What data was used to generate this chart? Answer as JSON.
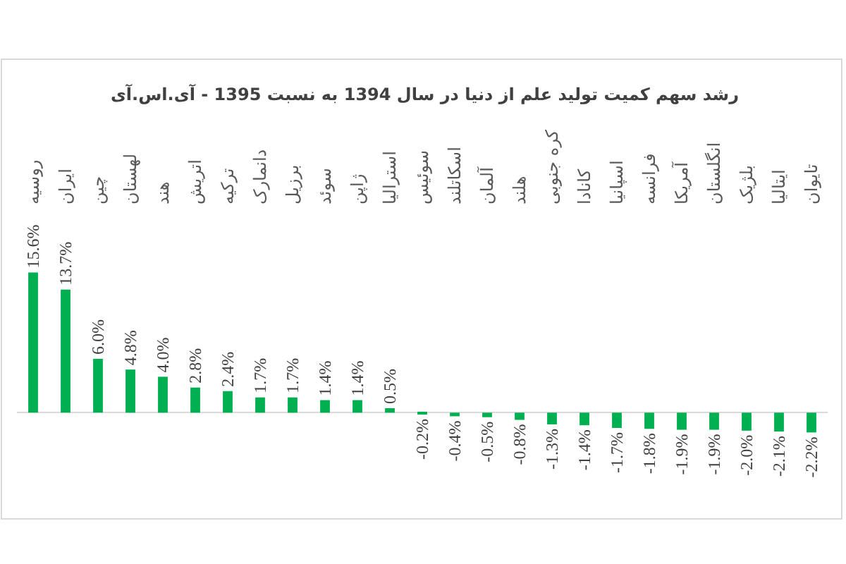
{
  "chart_data": {
    "type": "bar",
    "title": "رشد سهم کمیت تولید علم از دنیا در سال 1394 به نسبت 1395 - آی.اس.آی",
    "categories": [
      "روسیه",
      "ایران",
      "چین",
      "لهستان",
      "هند",
      "اتریش",
      "ترکیه",
      "دانمارک",
      "برزیل",
      "سوئد",
      "ژاپن",
      "استرالیا",
      "سوئیس",
      "اسکاتلند",
      "آلمان",
      "هلند",
      "کره جنوبی",
      "کانادا",
      "اسپانیا",
      "فرانسه",
      "آمریکا",
      "انگلستان",
      "بلژیک",
      "ایتالیا",
      "تایوان"
    ],
    "values": [
      15.6,
      13.7,
      6.0,
      4.8,
      4.0,
      2.8,
      2.4,
      1.7,
      1.7,
      1.4,
      1.4,
      0.5,
      -0.2,
      -0.4,
      -0.5,
      -0.8,
      -1.3,
      -1.4,
      -1.7,
      -1.8,
      -1.9,
      -1.9,
      -2.0,
      -2.1,
      -2.2
    ],
    "value_labels": [
      "15.6%",
      "13.7%",
      "6.0%",
      "4.8%",
      "4.0%",
      "2.8%",
      "2.4%",
      "1.7%",
      "1.7%",
      "1.4%",
      "1.4%",
      "0.5%",
      "-0.2%",
      "-0.4%",
      "-0.5%",
      "-0.8%",
      "-1.3%",
      "-1.4%",
      "-1.7%",
      "-1.8%",
      "-1.9%",
      "-1.9%",
      "-2.0%",
      "-2.1%",
      "-2.2%"
    ],
    "color": "#00b050",
    "tick_labels": "x"
  }
}
